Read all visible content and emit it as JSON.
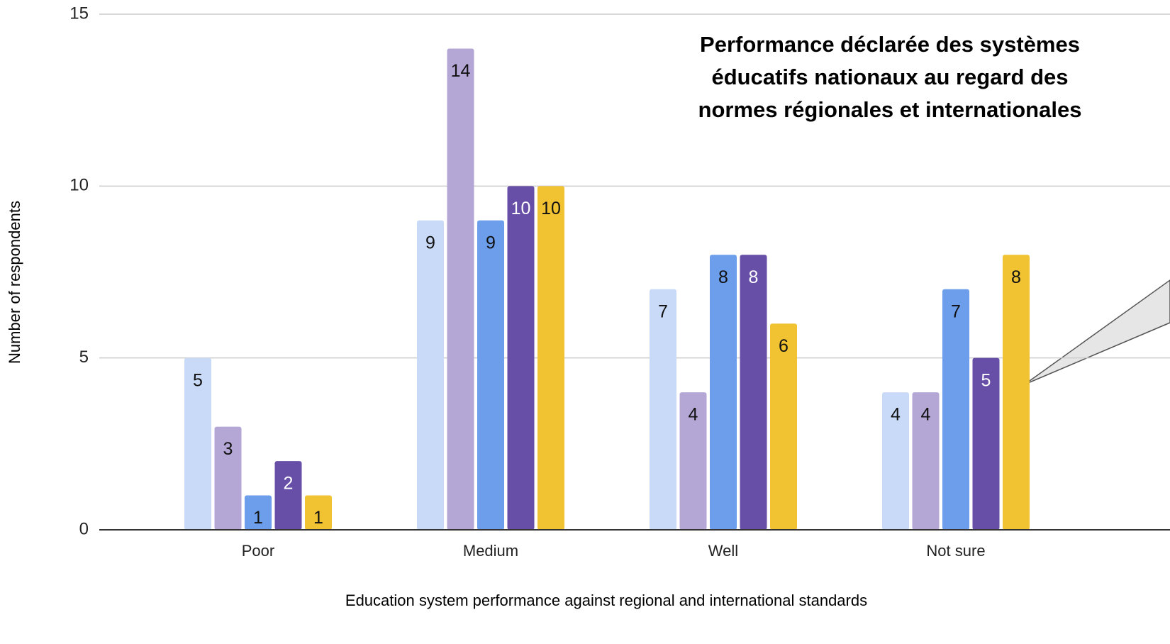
{
  "chart_data": {
    "type": "bar",
    "title": "Performance déclarée des systèmes éducatifs nationaux au regard des normes régionales et internationales",
    "x_label": "Education system performance against regional and international standards",
    "y_label": "Number of respondents",
    "categories": [
      "Poor",
      "Medium",
      "Well",
      "Not sure"
    ],
    "series": [
      {
        "color": "#c9daf8",
        "values": [
          5,
          9,
          7,
          4
        ]
      },
      {
        "color": "#b4a7d6",
        "values": [
          3,
          14,
          4,
          4
        ]
      },
      {
        "color": "#6d9eeb",
        "values": [
          1,
          9,
          8,
          7
        ]
      },
      {
        "color": "#674ea7",
        "values": [
          2,
          10,
          8,
          5
        ]
      },
      {
        "color": "#f1c232",
        "values": [
          1,
          10,
          6,
          8
        ]
      }
    ],
    "ylim": [
      0,
      15
    ],
    "yticks": [
      0,
      5,
      10,
      15
    ],
    "grid": true
  }
}
